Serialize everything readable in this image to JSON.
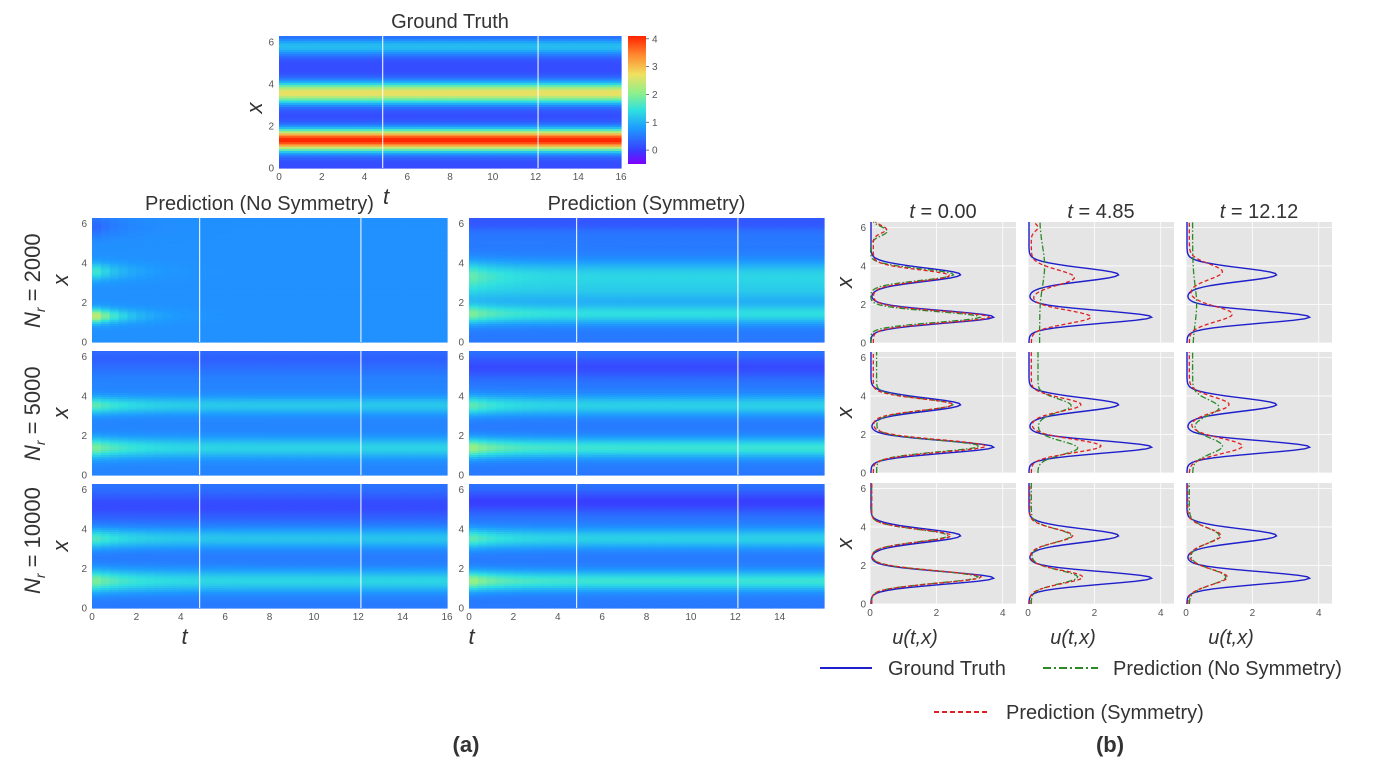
{
  "chart_data": [
    {
      "type": "heatmap",
      "panel": "(a)",
      "colormap": "jet",
      "colorbar": {
        "min": -0.5,
        "max": 4.1,
        "ticks": [
          "4",
          "3",
          "2",
          "1",
          "0"
        ]
      },
      "x_ticks": [
        "0",
        "2",
        "4",
        "6",
        "8",
        "10",
        "12",
        "14",
        "16"
      ],
      "x_ticks_sym": [
        "0",
        "2",
        "4",
        "6",
        "8",
        "10",
        "12",
        "14"
      ],
      "y_ticks": [
        "0",
        "2",
        "4",
        "6"
      ],
      "xlabel": "t",
      "ylabel": "x",
      "xlim": [
        0,
        16
      ],
      "ylim": [
        0,
        6.28
      ],
      "snapshot_times": [
        4.85,
        12.12
      ],
      "ground_truth": {
        "title": "Ground Truth"
      },
      "columns": [
        "Prediction (No Symmetry)",
        "Prediction (Symmetry)"
      ],
      "rows": [
        {
          "label": "N_r = 2000",
          "label_sub": "r",
          "label_value": " = 2000"
        },
        {
          "label": "N_r = 5000",
          "label_sub": "r",
          "label_value": " = 5000"
        },
        {
          "label": "N_r = 10000",
          "label_sub": "r",
          "label_value": " = 10000"
        }
      ]
    },
    {
      "type": "line",
      "panel": "(b)",
      "columns": [
        "t = 0.00",
        "t = 4.85",
        "t = 12.12"
      ],
      "col_t_values": [
        "0.00",
        "4.85",
        "12.12"
      ],
      "xlabel": "u(t,x)",
      "ylabel": "x",
      "xlim": [
        0,
        4.4
      ],
      "ylim": [
        0,
        6.28
      ],
      "x_ticks": [
        "0",
        "2",
        "4"
      ],
      "y_ticks": [
        "0",
        "2",
        "4",
        "6"
      ],
      "series": [
        {
          "name": "Ground Truth",
          "color": "#1f1fcc",
          "style": "solid"
        },
        {
          "name": "Prediction (No Symmetry)",
          "color": "#2a8a2a",
          "style": "dashdot"
        },
        {
          "name": "Prediction (Symmetry)",
          "color": "#e02020",
          "style": "dashed"
        }
      ]
    }
  ],
  "labels": {
    "panel_a": "(a)",
    "panel_b": "(b)"
  }
}
